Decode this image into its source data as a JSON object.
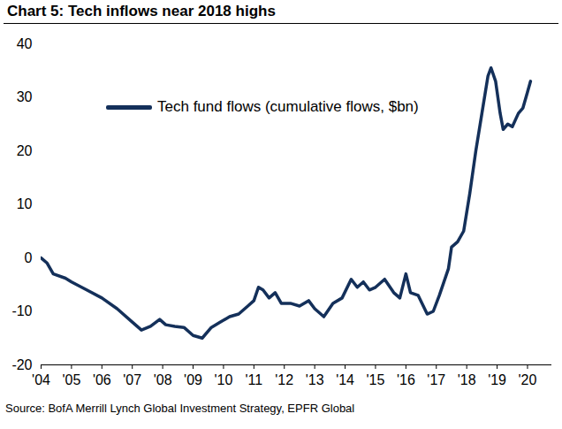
{
  "chart_data": {
    "type": "line",
    "title": "Chart 5: Tech inflows near 2018 highs",
    "caption": "Source: BofA Merrill Lynch Global Investment Strategy, EPFR Global",
    "x": [
      2004.0,
      2004.2,
      2004.4,
      2004.8,
      2005.0,
      2005.5,
      2006.0,
      2006.5,
      2007.0,
      2007.3,
      2007.6,
      2007.9,
      2008.1,
      2008.4,
      2008.7,
      2009.0,
      2009.3,
      2009.6,
      2009.9,
      2010.2,
      2010.5,
      2010.8,
      2011.0,
      2011.15,
      2011.3,
      2011.5,
      2011.7,
      2011.9,
      2012.2,
      2012.5,
      2012.8,
      2013.0,
      2013.3,
      2013.6,
      2013.9,
      2014.2,
      2014.4,
      2014.6,
      2014.8,
      2015.0,
      2015.3,
      2015.6,
      2015.8,
      2016.0,
      2016.15,
      2016.4,
      2016.7,
      2016.9,
      2017.1,
      2017.4,
      2017.5,
      2017.7,
      2017.9,
      2018.1,
      2018.3,
      2018.5,
      2018.7,
      2018.8,
      2018.95,
      2019.1,
      2019.2,
      2019.35,
      2019.5,
      2019.7,
      2019.85,
      2020.0,
      2020.1
    ],
    "series": [
      {
        "name": "Tech fund flows (cumulative flows, $bn)",
        "color": "#14305a",
        "values": [
          0,
          -1,
          -3,
          -3.8,
          -4.5,
          -6,
          -7.5,
          -9.5,
          -12,
          -13.5,
          -12.8,
          -11.5,
          -12.5,
          -12.8,
          -13,
          -14.5,
          -15,
          -13,
          -12,
          -11,
          -10.5,
          -9,
          -8,
          -5.5,
          -6,
          -7.5,
          -6.5,
          -8.5,
          -8.5,
          -9,
          -8,
          -9.5,
          -11,
          -8.5,
          -7.5,
          -4,
          -5.5,
          -4.5,
          -6,
          -5.5,
          -4,
          -6.5,
          -7.5,
          -3,
          -6.5,
          -7,
          -10.5,
          -10,
          -7,
          -2,
          2,
          3,
          5,
          12,
          20,
          27,
          34,
          35.5,
          33,
          27,
          24,
          25,
          24.5,
          27,
          28,
          31,
          33
        ]
      }
    ],
    "xlim": [
      2004,
      2020.8
    ],
    "xticks": [
      {
        "value": 2004,
        "label": "'04"
      },
      {
        "value": 2005,
        "label": "'05"
      },
      {
        "value": 2006,
        "label": "'06"
      },
      {
        "value": 2007,
        "label": "'07"
      },
      {
        "value": 2008,
        "label": "'08"
      },
      {
        "value": 2009,
        "label": "'09"
      },
      {
        "value": 2010,
        "label": "'10"
      },
      {
        "value": 2011,
        "label": "'11"
      },
      {
        "value": 2012,
        "label": "'12"
      },
      {
        "value": 2013,
        "label": "'13"
      },
      {
        "value": 2014,
        "label": "'14"
      },
      {
        "value": 2015,
        "label": "'15"
      },
      {
        "value": 2016,
        "label": "'16"
      },
      {
        "value": 2017,
        "label": "'17"
      },
      {
        "value": 2018,
        "label": "'18"
      },
      {
        "value": 2019,
        "label": "'19"
      },
      {
        "value": 2020,
        "label": "'20"
      }
    ],
    "ylim": [
      -20,
      40
    ],
    "yticks": [
      -20,
      -10,
      0,
      10,
      20,
      30,
      40
    ],
    "grid": false,
    "legend": "top"
  }
}
